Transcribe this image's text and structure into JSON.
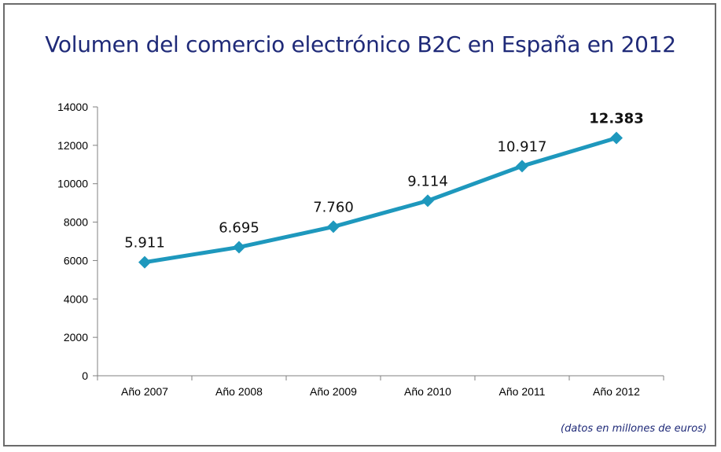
{
  "chart_data": {
    "type": "line",
    "title": "Volumen del comercio electrónico B2C en España en 2012",
    "categories": [
      "Año 2007",
      "Año 2008",
      "Año 2009",
      "Año 2010",
      "Año 2011",
      "Año 2012"
    ],
    "values": [
      5911,
      6695,
      7760,
      9114,
      10917,
      12383
    ],
    "data_labels": [
      "5.911",
      "6.695",
      "7.760",
      "9.114",
      "10.917",
      "12.383"
    ],
    "highlighted_label_index": 5,
    "y_ticks": [
      "0",
      "2000",
      "4000",
      "6000",
      "8000",
      "10000",
      "12000",
      "14000"
    ],
    "ylim": [
      0,
      14000
    ],
    "xlabel": "",
    "ylabel": "",
    "series_color": "#1e98bd",
    "grid": false
  },
  "note": "(datos en millones de euros)",
  "colors": {
    "title": "#1f2a78",
    "frame": "#6b6b6b"
  }
}
